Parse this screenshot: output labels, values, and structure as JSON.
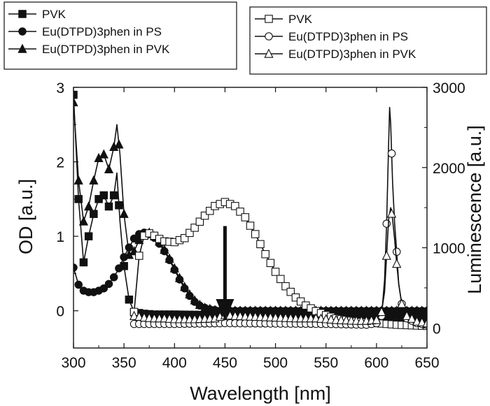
{
  "chart_data": {
    "type": "line",
    "xlabel": "Wavelength [nm]",
    "ylabel_left": "OD [a.u.]",
    "ylabel_right": "Luminescence [a.u.]",
    "xlim": [
      300,
      650
    ],
    "ylim_left": [
      -0.5,
      3
    ],
    "ylim_right": [
      -250,
      3000
    ],
    "x_ticks": [
      "300",
      "350",
      "400",
      "450",
      "500",
      "550",
      "600",
      "650"
    ],
    "y_left_ticks": [
      "0",
      "1",
      "2",
      "3"
    ],
    "y_right_ticks": [
      "0",
      "1000",
      "2000",
      "3000"
    ],
    "legend_absorption": {
      "placement": "top-left",
      "entries": [
        "PVK",
        "Eu(DTPD)3phen in PS",
        "Eu(DTPD)3phen in PVK"
      ]
    },
    "legend_luminescence": {
      "placement": "top-right",
      "entries": [
        "PVK",
        "Eu(DTPD)3phen in PS",
        "Eu(DTPD)3phen in PVK"
      ]
    },
    "annotation": "downward arrow at 450 nm from PVK emission maximum to near zero (quenching)",
    "series": [
      {
        "name": "PVK",
        "axis": "left",
        "kind": "absorption",
        "marker": "filled-square",
        "x": [
          300,
          305,
          310,
          315,
          320,
          325,
          330,
          335,
          340,
          343,
          346,
          350,
          355,
          360,
          370,
          380,
          400,
          450,
          500,
          550,
          600,
          650
        ],
        "y": [
          2.9,
          1.5,
          0.65,
          1.0,
          1.3,
          1.5,
          1.55,
          1.4,
          1.55,
          1.85,
          1.2,
          0.6,
          0.15,
          -0.02,
          -0.04,
          -0.05,
          -0.05,
          -0.06,
          -0.06,
          -0.07,
          -0.08,
          -0.09
        ]
      },
      {
        "name": "Eu(DTPD)3phen in PS",
        "axis": "left",
        "kind": "absorption",
        "marker": "filled-circle",
        "x": [
          300,
          305,
          310,
          315,
          320,
          325,
          330,
          335,
          340,
          345,
          350,
          355,
          360,
          365,
          370,
          375,
          380,
          385,
          390,
          395,
          400,
          405,
          410,
          415,
          420,
          425,
          430,
          435,
          440,
          445,
          450,
          500,
          550,
          600,
          650
        ],
        "y": [
          0.58,
          0.35,
          0.27,
          0.25,
          0.25,
          0.27,
          0.3,
          0.36,
          0.45,
          0.57,
          0.72,
          0.85,
          0.97,
          1.03,
          1.05,
          1.03,
          0.98,
          0.9,
          0.8,
          0.68,
          0.55,
          0.42,
          0.3,
          0.2,
          0.12,
          0.07,
          0.04,
          0.02,
          0.01,
          0.0,
          0.0,
          0.0,
          0.0,
          0.0,
          0.0
        ]
      },
      {
        "name": "Eu(DTPD)3phen in PVK",
        "axis": "left",
        "kind": "absorption",
        "marker": "filled-triangle",
        "x": [
          300,
          305,
          310,
          315,
          320,
          325,
          330,
          335,
          340,
          343,
          346,
          350,
          355,
          360,
          365,
          370,
          375,
          380,
          385,
          390,
          395,
          400,
          405,
          410,
          415,
          420,
          425,
          430,
          440,
          450,
          500,
          550,
          600,
          650
        ],
        "y": [
          2.8,
          1.75,
          1.2,
          1.4,
          1.75,
          2.05,
          2.1,
          1.9,
          2.2,
          2.5,
          2.1,
          1.3,
          0.75,
          0.8,
          0.95,
          1.02,
          1.05,
          1.0,
          0.93,
          0.82,
          0.7,
          0.57,
          0.44,
          0.32,
          0.22,
          0.14,
          0.08,
          0.04,
          0.01,
          0.0,
          0.0,
          0.0,
          0.0,
          0.0
        ]
      },
      {
        "name": "PVK",
        "axis": "right",
        "kind": "luminescence",
        "marker": "open-square",
        "x": [
          360,
          365,
          370,
          375,
          380,
          385,
          390,
          400,
          410,
          420,
          430,
          440,
          450,
          460,
          470,
          480,
          490,
          500,
          510,
          520,
          530,
          540,
          550,
          560,
          570,
          580,
          590,
          600,
          610,
          620,
          630,
          640,
          650
        ],
        "y": [
          200,
          900,
          1150,
          1180,
          1150,
          1110,
          1080,
          1070,
          1120,
          1250,
          1400,
          1520,
          1570,
          1520,
          1380,
          1170,
          920,
          700,
          520,
          380,
          280,
          210,
          160,
          120,
          100,
          80,
          70,
          60,
          50,
          40,
          35,
          30,
          25
        ]
      },
      {
        "name": "Eu(DTPD)3phen in PS",
        "axis": "right",
        "kind": "luminescence",
        "marker": "open-circle",
        "x": [
          360,
          400,
          450,
          500,
          550,
          590,
          600,
          605,
          608,
          610,
          612,
          613,
          614,
          616,
          618,
          620,
          622,
          625,
          630,
          640,
          650
        ],
        "y": [
          50,
          50,
          60,
          55,
          50,
          40,
          60,
          150,
          600,
          1300,
          2300,
          2750,
          2550,
          1800,
          1300,
          950,
          550,
          300,
          120,
          60,
          40
        ]
      },
      {
        "name": "Eu(DTPD)3phen in PVK",
        "axis": "right",
        "kind": "luminescence",
        "marker": "open-triangle",
        "x": [
          360,
          370,
          380,
          390,
          400,
          420,
          440,
          450,
          460,
          480,
          500,
          520,
          540,
          560,
          580,
          590,
          600,
          605,
          608,
          610,
          612,
          614,
          616,
          618,
          620,
          622,
          625,
          630,
          640,
          650
        ],
        "y": [
          150,
          130,
          120,
          120,
          110,
          110,
          120,
          160,
          150,
          140,
          130,
          120,
          120,
          100,
          90,
          90,
          100,
          200,
          450,
          900,
          1350,
          1500,
          1350,
          1100,
          800,
          550,
          300,
          150,
          80,
          60
        ]
      }
    ]
  }
}
